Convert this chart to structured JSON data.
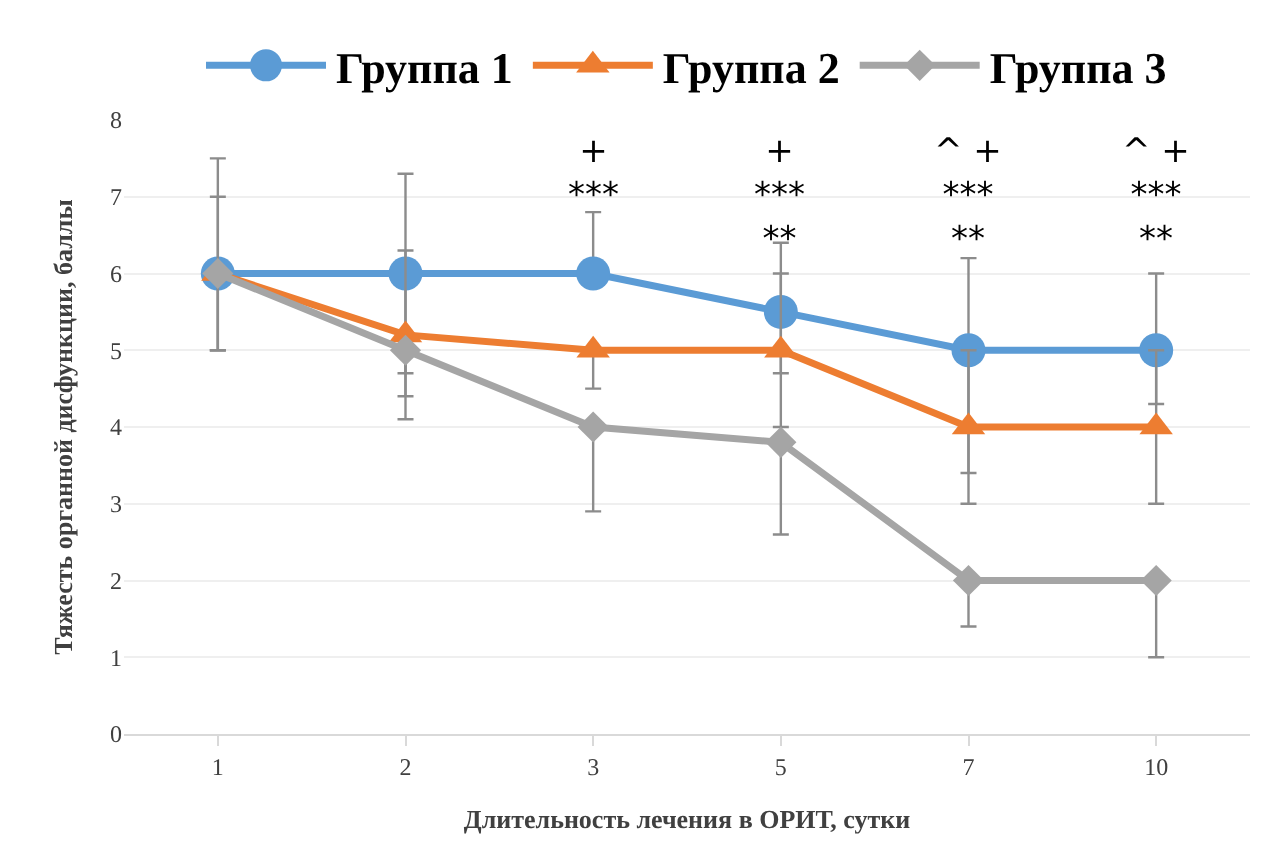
{
  "chart_data": {
    "type": "line",
    "xlabel": "Длительность лечения в ОРИТ, сутки",
    "ylabel": "Тяжесть органной дисфункции, баллы",
    "categories": [
      "1",
      "2",
      "3",
      "5",
      "7",
      "10"
    ],
    "series": [
      {
        "name": "Группа 1",
        "color": "#5b9bd5",
        "marker": "circle",
        "values": [
          6,
          6,
          6,
          5.5,
          5,
          5
        ],
        "errors": [
          [
            5,
            7.5
          ],
          [
            4.7,
            7.3
          ],
          [
            6,
            6.8
          ],
          [
            4.7,
            6.4
          ],
          [
            3.4,
            6.2
          ],
          [
            4.3,
            6.0
          ]
        ]
      },
      {
        "name": "Группа 2",
        "color": "#ed7d31",
        "marker": "triangle",
        "values": [
          6,
          5.2,
          5,
          5,
          4,
          4
        ],
        "errors": [
          [
            5,
            7
          ],
          [
            4.4,
            6.3
          ],
          [
            4.5,
            5
          ],
          [
            4.0,
            6.0
          ],
          [
            3.0,
            5.0
          ],
          [
            3.0,
            5.0
          ]
        ]
      },
      {
        "name": "Группа 3",
        "color": "#a5a5a5",
        "marker": "diamond",
        "values": [
          6,
          5,
          4,
          3.8,
          2,
          2
        ],
        "errors": [
          [
            5,
            6
          ],
          [
            4.1,
            5
          ],
          [
            2.9,
            4
          ],
          [
            2.6,
            3.8
          ],
          [
            1.4,
            2
          ],
          [
            1.0,
            2
          ]
        ]
      }
    ],
    "ylim": [
      0,
      8
    ],
    "yticks": [
      0,
      1,
      2,
      3,
      4,
      5,
      6,
      7,
      8
    ],
    "grid": "y",
    "legend": "top",
    "annotations": [
      "+\n***",
      "+\n***\n**",
      "^ +\n***\n**",
      "^ +\n***\n**"
    ]
  }
}
